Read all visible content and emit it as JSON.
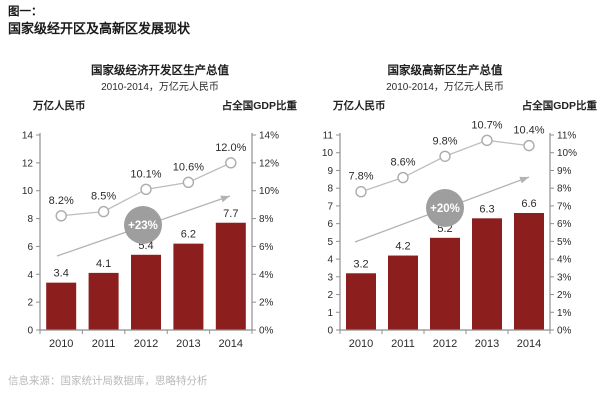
{
  "page": {
    "figure_label": "图一：",
    "figure_title": "国家级经开区及高新区发展现状",
    "source_note": "信息来源：国家统计局数据库，思略特分析"
  },
  "colors": {
    "bar": "#8C1E1E",
    "line": "#BDBDBD",
    "marker_stroke": "#ACACAC",
    "marker_fill": "#FFFFFF",
    "arrow": "#B3B3B3",
    "growth_circle": "#9E9E9E",
    "growth_text": "#FFFFFF",
    "axis": "#8F8F8F",
    "label_text": "#2B2B2B",
    "source_text": "#B9B9B9"
  },
  "chart_data": [
    {
      "type": "bar",
      "title": "国家级经济开发区生产总值",
      "subtitle": "2010-2014，万亿元人民币",
      "left_axis_label": "万亿人民币",
      "right_axis_label": "占全国GDP比重",
      "categories": [
        "2010",
        "2011",
        "2012",
        "2013",
        "2014"
      ],
      "series": [
        {
          "type": "bar",
          "axis": "left",
          "values": [
            3.4,
            4.1,
            5.4,
            6.2,
            7.7
          ],
          "labels": [
            "3.4",
            "4.1",
            "5.4",
            "6.2",
            "7.7"
          ]
        },
        {
          "type": "line",
          "axis": "right",
          "values": [
            8.2,
            8.5,
            10.1,
            10.6,
            12.0
          ],
          "labels": [
            "8.2%",
            "8.5%",
            "10.1%",
            "10.6%",
            "12.0%"
          ]
        }
      ],
      "left_axis": {
        "min": 0,
        "max": 14,
        "step": 2,
        "labels": [
          "0",
          "2",
          "4",
          "6",
          "8",
          "10",
          "12",
          "14"
        ]
      },
      "right_axis": {
        "min": 0,
        "max": 14,
        "step": 2,
        "labels": [
          "0%",
          "2%",
          "4%",
          "6%",
          "8%",
          "10%",
          "12%",
          "14%"
        ]
      },
      "growth_annotation": "+23%",
      "grid": false,
      "legend": false
    },
    {
      "type": "bar",
      "title": "国家级高新区生产总值",
      "subtitle": "2010-2014，万亿元人民币",
      "left_axis_label": "万亿人民币",
      "right_axis_label": "占全国GDP比重",
      "categories": [
        "2010",
        "2011",
        "2012",
        "2013",
        "2014"
      ],
      "series": [
        {
          "type": "bar",
          "axis": "left",
          "values": [
            3.2,
            4.2,
            5.2,
            6.3,
            6.6
          ],
          "labels": [
            "3.2",
            "4.2",
            "5.2",
            "6.3",
            "6.6"
          ]
        },
        {
          "type": "line",
          "axis": "right",
          "values": [
            7.8,
            8.6,
            9.8,
            10.7,
            10.4
          ],
          "labels": [
            "7.8%",
            "8.6%",
            "9.8%",
            "10.7%",
            "10.4%"
          ]
        }
      ],
      "left_axis": {
        "min": 0,
        "max": 11,
        "step": 1,
        "labels": [
          "0",
          "1",
          "2",
          "3",
          "4",
          "5",
          "6",
          "7",
          "8",
          "9",
          "10",
          "11"
        ]
      },
      "right_axis": {
        "min": 0,
        "max": 11,
        "step": 1,
        "labels": [
          "0%",
          "1%",
          "2%",
          "3%",
          "4%",
          "5%",
          "6%",
          "7%",
          "8%",
          "9%",
          "10%",
          "11%"
        ]
      },
      "growth_annotation": "+20%",
      "grid": false,
      "legend": false
    }
  ]
}
